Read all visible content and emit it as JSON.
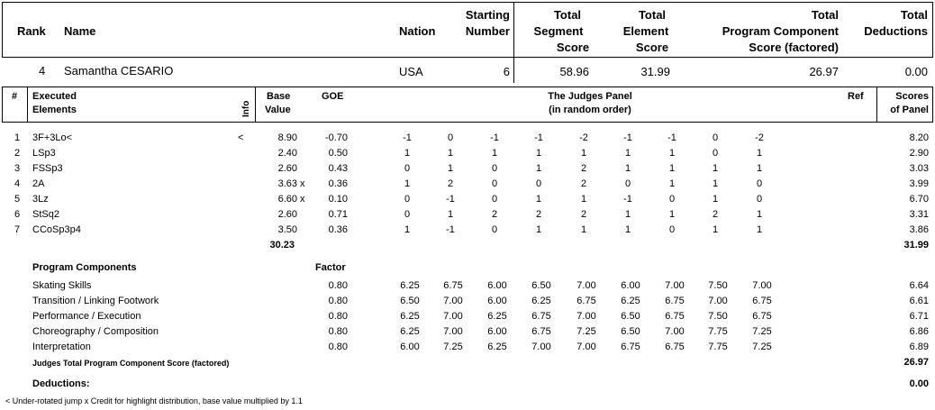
{
  "header": {
    "rank": "Rank",
    "name": "Name",
    "nation": "Nation",
    "starting_1": "Starting",
    "starting_2": "Number",
    "tss_1": "Total",
    "tss_2": "Segment",
    "tss_3": "Score",
    "tes_1": "Total",
    "tes_2": "Element",
    "tes_3": "Score",
    "pcs_1": "Total",
    "pcs_2": "Program  Component",
    "pcs_3": "Score (factored)",
    "ded_1": "Total",
    "ded_2": "Deductions"
  },
  "skater": {
    "rank": "4",
    "name": "Samantha CESARIO",
    "nation": "USA",
    "start": "6",
    "tss": "58.96",
    "tes": "31.99",
    "pcs": "26.97",
    "ded": "0.00"
  },
  "elements_header": {
    "num": "#",
    "exec_1": "Executed",
    "exec_2": "Elements",
    "info": "Info",
    "base_1": "Base",
    "base_2": "Value",
    "goe": "GOE",
    "panel_1": "The Judges Panel",
    "panel_2": "(in random order)",
    "ref": "Ref",
    "scores_1": "Scores",
    "scores_2": "of Panel"
  },
  "elements": [
    {
      "num": "1",
      "name": "3F+3Lo<",
      "info": "<",
      "base": "8.90",
      "x": "",
      "goe": "-0.70",
      "judges": [
        "-1",
        "0",
        "-1",
        "-1",
        "-2",
        "-1",
        "-1",
        "0",
        "-2"
      ],
      "score": "8.20"
    },
    {
      "num": "2",
      "name": "LSp3",
      "info": "",
      "base": "2.40",
      "x": "",
      "goe": "0.50",
      "judges": [
        "1",
        "1",
        "1",
        "1",
        "1",
        "1",
        "1",
        "0",
        "1"
      ],
      "score": "2.90"
    },
    {
      "num": "3",
      "name": "FSSp3",
      "info": "",
      "base": "2.60",
      "x": "",
      "goe": "0.43",
      "judges": [
        "0",
        "1",
        "0",
        "1",
        "2",
        "1",
        "1",
        "1",
        "1"
      ],
      "score": "3.03"
    },
    {
      "num": "4",
      "name": "2A",
      "info": "",
      "base": "3.63",
      "x": "x",
      "goe": "0.36",
      "judges": [
        "1",
        "2",
        "0",
        "0",
        "2",
        "0",
        "1",
        "1",
        "0"
      ],
      "score": "3.99"
    },
    {
      "num": "5",
      "name": "3Lz",
      "info": "",
      "base": "6.60",
      "x": "x",
      "goe": "0.10",
      "judges": [
        "0",
        "-1",
        "0",
        "1",
        "1",
        "-1",
        "0",
        "1",
        "0"
      ],
      "score": "6.70"
    },
    {
      "num": "6",
      "name": "StSq2",
      "info": "",
      "base": "2.60",
      "x": "",
      "goe": "0.71",
      "judges": [
        "0",
        "1",
        "2",
        "2",
        "2",
        "1",
        "1",
        "2",
        "1"
      ],
      "score": "3.31"
    },
    {
      "num": "7",
      "name": "CCoSp3p4",
      "info": "",
      "base": "3.50",
      "x": "",
      "goe": "0.36",
      "judges": [
        "1",
        "-1",
        "0",
        "1",
        "1",
        "1",
        "0",
        "1",
        "1"
      ],
      "score": "3.86"
    }
  ],
  "elements_total_base": "30.23",
  "elements_total_score": "31.99",
  "pc_header": "Program Components",
  "factor_header": "Factor",
  "components": [
    {
      "name": "Skating Skills",
      "factor": "0.80",
      "judges": [
        "6.25",
        "6.75",
        "6.00",
        "6.50",
        "7.00",
        "6.00",
        "7.00",
        "7.50",
        "7.00"
      ],
      "score": "6.64"
    },
    {
      "name": "Transition / Linking Footwork",
      "factor": "0.80",
      "judges": [
        "6.50",
        "7.00",
        "6.00",
        "6.25",
        "6.75",
        "6.25",
        "6.75",
        "7.00",
        "6.75"
      ],
      "score": "6.61"
    },
    {
      "name": "Performance / Execution",
      "factor": "0.80",
      "judges": [
        "6.25",
        "7.00",
        "6.25",
        "6.75",
        "7.00",
        "6.50",
        "6.75",
        "7.50",
        "6.75"
      ],
      "score": "6.71"
    },
    {
      "name": "Choreography / Composition",
      "factor": "0.80",
      "judges": [
        "6.25",
        "7.00",
        "6.00",
        "6.75",
        "7.25",
        "6.50",
        "7.00",
        "7.75",
        "7.25"
      ],
      "score": "6.86"
    },
    {
      "name": "Interpretation",
      "factor": "0.80",
      "judges": [
        "6.00",
        "7.25",
        "6.25",
        "7.00",
        "7.00",
        "6.75",
        "6.75",
        "7.75",
        "7.25"
      ],
      "score": "6.89"
    }
  ],
  "pcs_total_label": "Judges Total Program Component Score (factored)",
  "pcs_total": "26.97",
  "deductions_label": "Deductions:",
  "deductions_value": "0.00",
  "legend": "<  Under-rotated jump   x  Credit for highlight distribution, base value multiplied by 1.1"
}
